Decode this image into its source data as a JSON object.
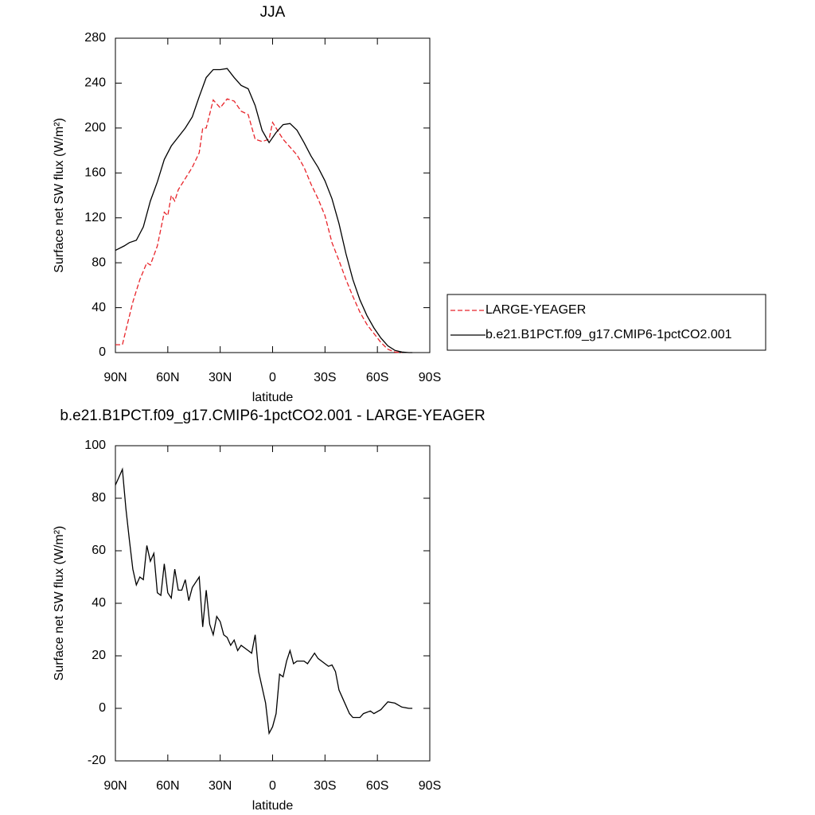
{
  "chart_data": [
    {
      "type": "line",
      "title": "JJA",
      "xlabel": "latitude",
      "ylabel": "Surface net SW flux (W/m²)",
      "xlim": [
        90,
        -90
      ],
      "xticks": [
        {
          "value": 90,
          "label": "90N"
        },
        {
          "value": 60,
          "label": "60N"
        },
        {
          "value": 30,
          "label": "30N"
        },
        0,
        {
          "value": -30,
          "label": "30S"
        },
        {
          "value": -60,
          "label": "60S"
        },
        {
          "value": -90,
          "label": "90S"
        }
      ],
      "ylim": [
        0,
        280
      ],
      "yticks": [
        0,
        40,
        80,
        120,
        160,
        200,
        240,
        280
      ],
      "legend": "right",
      "series": [
        {
          "name": "LARGE-YEAGER",
          "color": "#e8242a",
          "dash": true,
          "x": [
            90,
            86,
            84,
            80,
            76,
            72,
            70,
            66,
            62,
            60,
            58,
            56,
            54,
            50,
            46,
            42,
            40,
            38,
            34,
            30,
            26,
            22,
            18,
            14,
            10,
            6,
            2,
            0,
            -2,
            -6,
            -10,
            -14,
            -18,
            -22,
            -26,
            -30,
            -34,
            -38,
            -42,
            -46,
            -50,
            -54,
            -58,
            -62,
            -66,
            -70,
            -74
          ],
          "values": [
            7,
            7,
            20,
            45,
            65,
            80,
            78,
            95,
            125,
            122,
            140,
            135,
            145,
            155,
            165,
            178,
            200,
            200,
            225,
            218,
            226,
            224,
            215,
            212,
            190,
            188,
            190,
            205,
            200,
            190,
            183,
            176,
            165,
            150,
            137,
            122,
            98,
            82,
            65,
            50,
            36,
            25,
            17,
            9,
            3,
            0.5,
            0
          ]
        },
        {
          "name": "b.e21.B1PCT.f09_g17.CMIP6-1pctCO2.001",
          "color": "#000000",
          "dash": false,
          "x": [
            90,
            85,
            82,
            78,
            74,
            70,
            66,
            62,
            58,
            54,
            50,
            46,
            42,
            38,
            34,
            30,
            26,
            22,
            18,
            14,
            10,
            6,
            2,
            -2,
            -6,
            -10,
            -14,
            -18,
            -22,
            -26,
            -30,
            -34,
            -38,
            -42,
            -46,
            -50,
            -54,
            -58,
            -62,
            -66,
            -70,
            -74,
            -78,
            -80
          ],
          "values": [
            91,
            95,
            98,
            100,
            112,
            135,
            152,
            172,
            184,
            192,
            200,
            210,
            228,
            245,
            252,
            252,
            253,
            245,
            238,
            235,
            220,
            198,
            187,
            196,
            203,
            204,
            198,
            187,
            175,
            165,
            153,
            137,
            115,
            88,
            65,
            47,
            33,
            22,
            13,
            6,
            2,
            0.5,
            0,
            0
          ]
        }
      ]
    },
    {
      "type": "line",
      "title": "b.e21.B1PCT.f09_g17.CMIP6-1pctCO2.001 - LARGE-YEAGER",
      "xlabel": "latitude",
      "ylabel": "Surface net SW flux (W/m²)",
      "xlim": [
        90,
        -90
      ],
      "xticks": [
        {
          "value": 90,
          "label": "90N"
        },
        {
          "value": 60,
          "label": "60N"
        },
        {
          "value": 30,
          "label": "30N"
        },
        0,
        {
          "value": -30,
          "label": "30S"
        },
        {
          "value": -60,
          "label": "60S"
        },
        {
          "value": -90,
          "label": "90S"
        }
      ],
      "ylim": [
        -20,
        100
      ],
      "yticks": [
        -20,
        0,
        20,
        40,
        60,
        80,
        100
      ],
      "series": [
        {
          "color": "#000000",
          "dash": false,
          "x": [
            90,
            88,
            86,
            84,
            82,
            80,
            78,
            76,
            74,
            72,
            70,
            68,
            66,
            64,
            62,
            60,
            58,
            56,
            54,
            52,
            50,
            48,
            46,
            42,
            40,
            38,
            36,
            34,
            32,
            30,
            28,
            26,
            24,
            22,
            20,
            18,
            14,
            12,
            10,
            8,
            4,
            2,
            0,
            -2,
            -4,
            -6,
            -8,
            -10,
            -12,
            -14,
            -18,
            -20,
            -24,
            -26,
            -30,
            -32,
            -34,
            -36,
            -38,
            -40,
            -42,
            -44,
            -46,
            -50,
            -52,
            -56,
            -58,
            -62,
            -64,
            -66,
            -70,
            -74,
            -78,
            -80
          ],
          "values": [
            85,
            88,
            91,
            76,
            64,
            53,
            47,
            50,
            49,
            62,
            56,
            59,
            44,
            43,
            55,
            44,
            42,
            53,
            45,
            45,
            49,
            41,
            46,
            50,
            31,
            45,
            32,
            28,
            35,
            33,
            28,
            27,
            24,
            26,
            22,
            24,
            22,
            21,
            28,
            14,
            2,
            -9.5,
            -7,
            -2,
            13,
            12,
            18,
            22,
            17,
            18,
            18,
            17,
            21,
            19,
            17,
            16,
            16.5,
            14,
            7,
            4,
            1,
            -2,
            -3.5,
            -3.5,
            -2,
            -1,
            -2,
            -0.5,
            1,
            2.5,
            2,
            0.5,
            0,
            0
          ]
        }
      ]
    }
  ]
}
